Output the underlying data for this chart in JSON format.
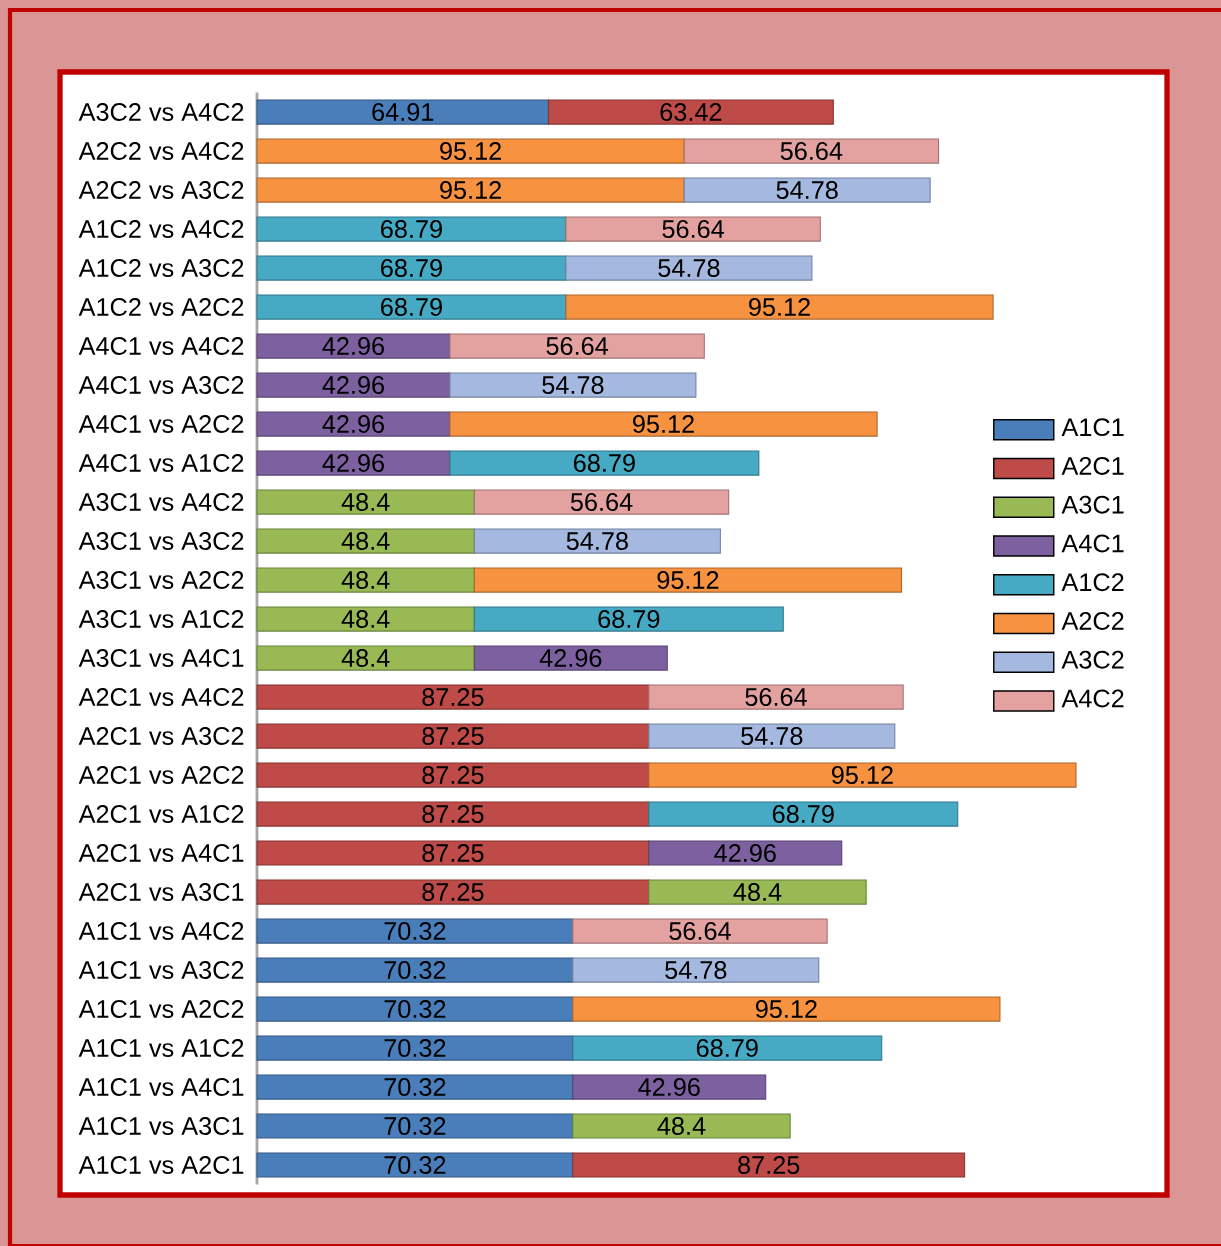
{
  "chart_data": {
    "type": "bar",
    "orientation": "horizontal",
    "stacked": true,
    "data_labels": true,
    "legend": "right",
    "categories": [
      "A3C2 vs A4C2",
      "A2C2 vs A4C2",
      "A2C2 vs A3C2",
      "A1C2 vs A4C2",
      "A1C2 vs A3C2",
      "A1C2 vs A2C2",
      "A4C1 vs A4C2",
      "A4C1 vs A3C2",
      "A4C1 vs A2C2",
      "A4C1 vs A1C2",
      "A3C1 vs A4C2",
      "A3C1 vs A3C2",
      "A3C1 vs A2C2",
      "A3C1 vs A1C2",
      "A3C1 vs A4C1",
      "A2C1 vs A4C2",
      "A2C1 vs A3C2",
      "A2C1 vs A2C2",
      "A2C1 vs A1C2",
      "A2C1 vs A4C1",
      "A2C1 vs A3C1",
      "A1C1 vs A4C2",
      "A1C1 vs A3C2",
      "A1C1 vs A2C2",
      "A1C1 vs A1C2",
      "A1C1 vs A4C1",
      "A1C1 vs A3C1",
      "A1C1 vs A2C1"
    ],
    "series": [
      {
        "name": "A1C1",
        "color": "#4a7ebb",
        "values": [
          64.91,
          null,
          null,
          null,
          null,
          null,
          null,
          null,
          null,
          null,
          null,
          null,
          null,
          null,
          null,
          null,
          null,
          null,
          null,
          null,
          null,
          70.32,
          70.32,
          70.32,
          70.32,
          70.32,
          70.32,
          70.32
        ]
      },
      {
        "name": "A2C1",
        "color": "#be4b48",
        "values": [
          63.42,
          null,
          null,
          null,
          null,
          null,
          null,
          null,
          null,
          null,
          null,
          null,
          null,
          null,
          null,
          87.25,
          87.25,
          87.25,
          87.25,
          87.25,
          87.25,
          null,
          null,
          null,
          null,
          null,
          null,
          87.25
        ]
      },
      {
        "name": "A3C1",
        "color": "#98b954",
        "values": [
          null,
          null,
          null,
          null,
          null,
          null,
          null,
          null,
          null,
          null,
          48.4,
          48.4,
          48.4,
          48.4,
          48.4,
          null,
          null,
          null,
          null,
          null,
          48.4,
          null,
          null,
          null,
          null,
          null,
          48.4,
          null
        ]
      },
      {
        "name": "A4C1",
        "color": "#7d60a0",
        "values": [
          null,
          null,
          null,
          null,
          null,
          null,
          42.96,
          42.96,
          42.96,
          42.96,
          null,
          null,
          null,
          null,
          42.96,
          null,
          null,
          null,
          null,
          42.96,
          null,
          null,
          null,
          null,
          null,
          42.96,
          null,
          null
        ]
      },
      {
        "name": "A1C2",
        "color": "#46aac5",
        "values": [
          null,
          null,
          null,
          68.79,
          68.79,
          68.79,
          null,
          null,
          null,
          68.79,
          null,
          null,
          null,
          68.79,
          null,
          null,
          null,
          null,
          68.79,
          null,
          null,
          null,
          null,
          null,
          68.79,
          null,
          null,
          null
        ]
      },
      {
        "name": "A2C2",
        "color": "#f69240",
        "values": [
          null,
          95.12,
          95.12,
          null,
          null,
          95.12,
          null,
          null,
          95.12,
          null,
          null,
          null,
          95.12,
          null,
          null,
          null,
          null,
          95.12,
          null,
          null,
          null,
          null,
          null,
          95.12,
          null,
          null,
          null,
          null
        ]
      },
      {
        "name": "A3C2",
        "color": "#a5b9e0",
        "values": [
          null,
          null,
          54.78,
          null,
          54.78,
          null,
          null,
          54.78,
          null,
          null,
          null,
          54.78,
          null,
          null,
          null,
          null,
          54.78,
          null,
          null,
          null,
          null,
          null,
          54.78,
          null,
          null,
          null,
          null,
          null
        ]
      },
      {
        "name": "A4C2",
        "color": "#e3a2a0",
        "values": [
          null,
          56.64,
          null,
          56.64,
          null,
          null,
          56.64,
          null,
          null,
          null,
          56.64,
          null,
          null,
          null,
          null,
          56.64,
          null,
          null,
          null,
          null,
          null,
          56.64,
          null,
          null,
          null,
          null,
          null,
          null
        ]
      }
    ]
  }
}
